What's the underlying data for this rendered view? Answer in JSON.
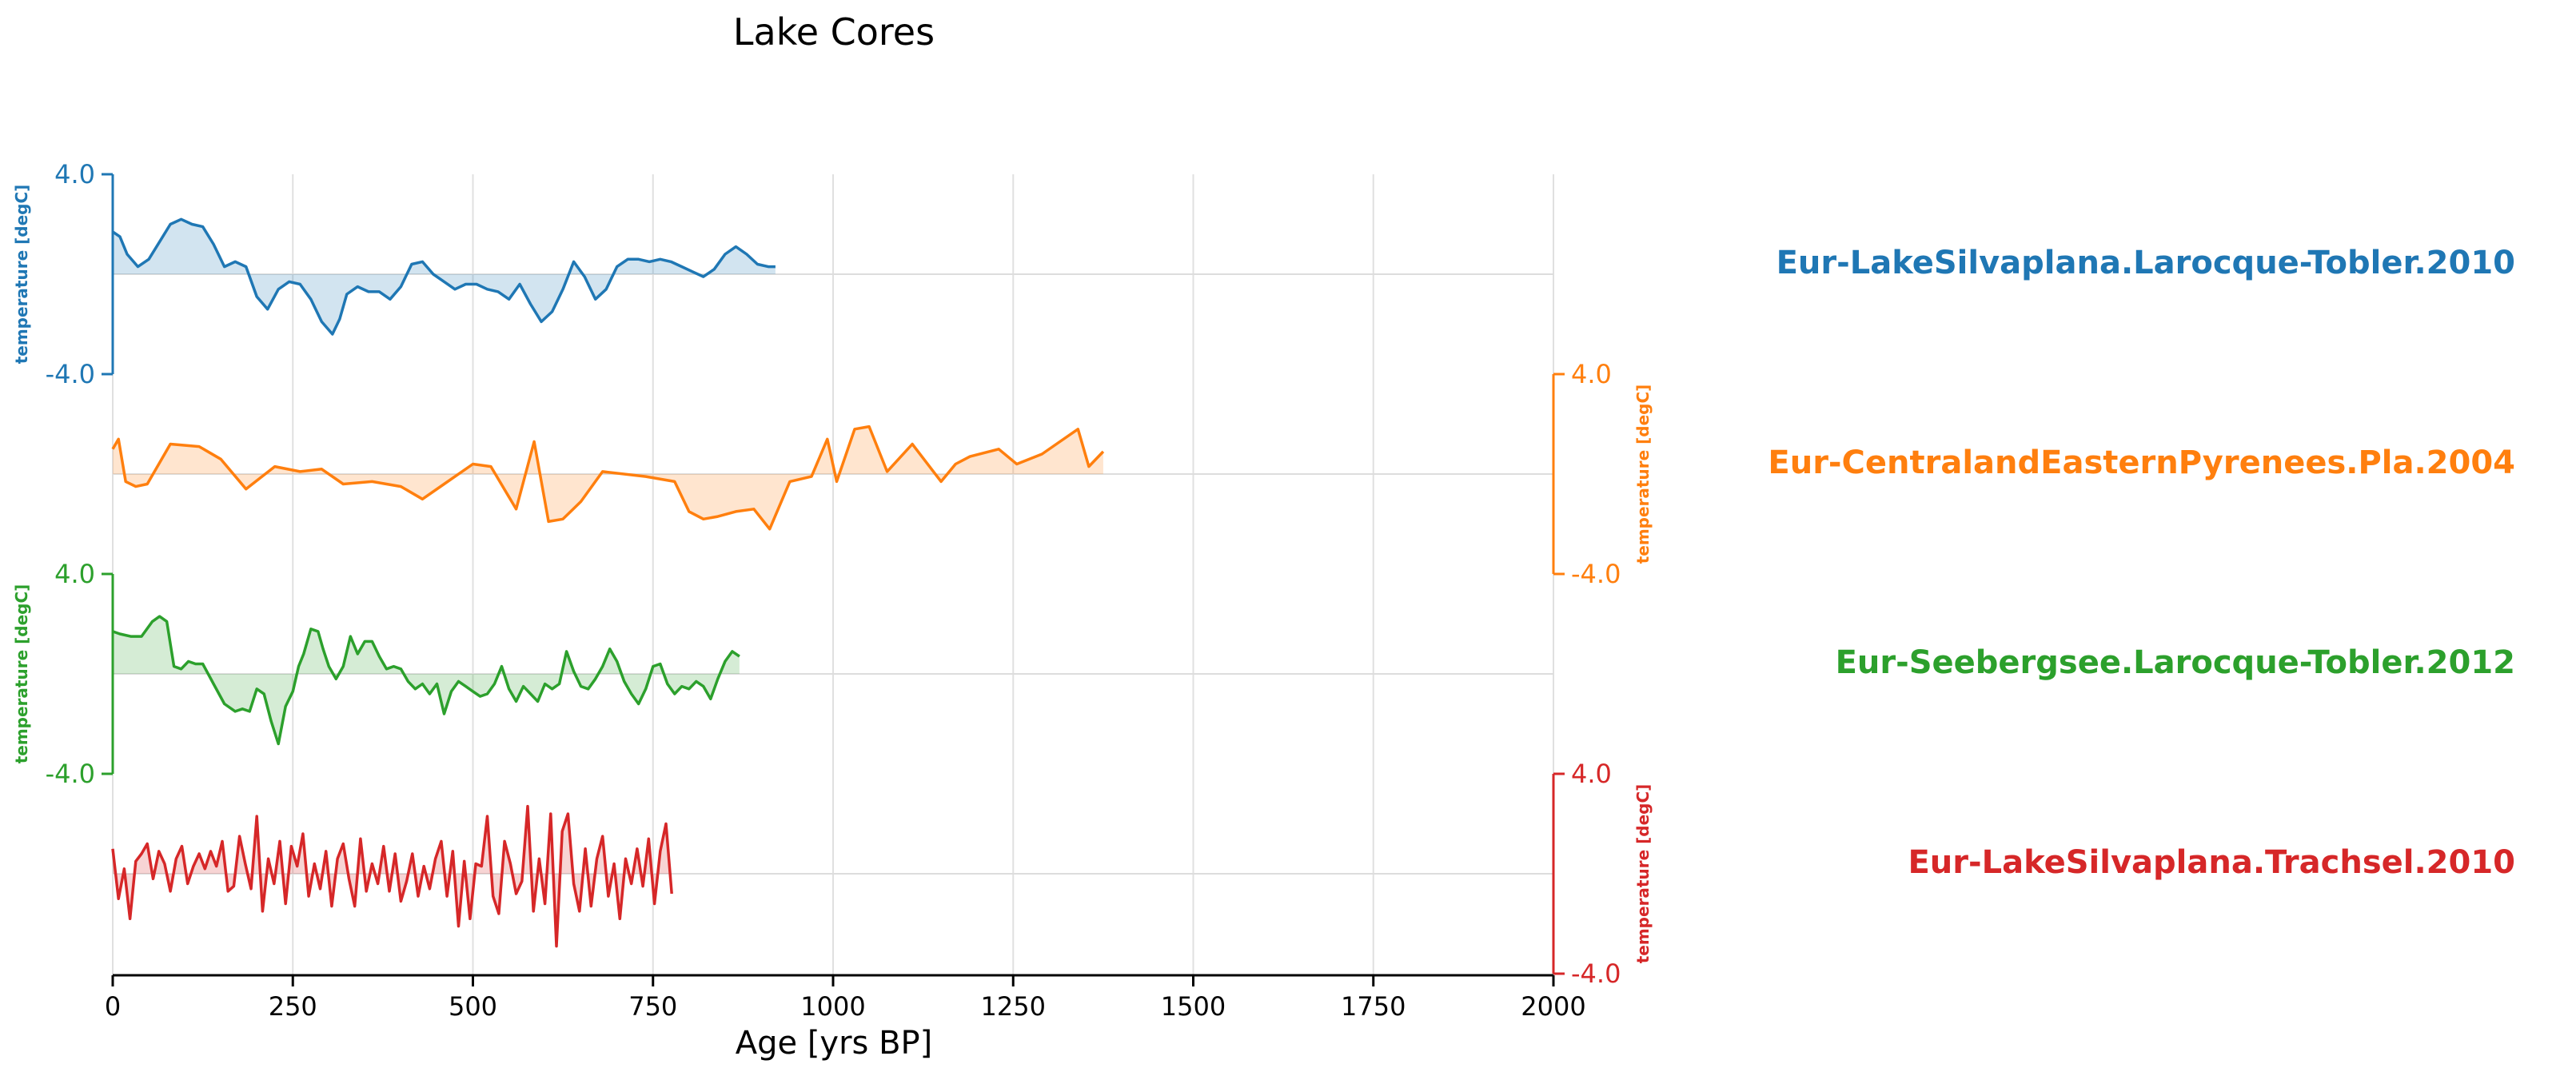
{
  "chart_data": {
    "type": "line",
    "title": "Lake Cores",
    "xlabel": "Age [yrs BP]",
    "xlim": [
      0,
      2000
    ],
    "xticks": [
      0,
      250,
      500,
      750,
      1000,
      1250,
      1500,
      1750,
      2000
    ],
    "grid": true,
    "stacked": true,
    "fill_to_zero": true,
    "series": [
      {
        "name": "Eur-LakeSilvaplana.Larocque-Tobler.2010",
        "color": "#1f77b4",
        "ylabel": "temperature [degC]",
        "ylim": [
          -4.0,
          4.0
        ],
        "ytick_labels": [
          "-4.0",
          "4.0"
        ],
        "axis_side": "left",
        "x": [
          0,
          10,
          20,
          35,
          50,
          65,
          80,
          95,
          110,
          125,
          140,
          155,
          170,
          185,
          200,
          215,
          230,
          245,
          260,
          275,
          290,
          305,
          315,
          325,
          340,
          355,
          370,
          385,
          400,
          415,
          430,
          445,
          460,
          475,
          490,
          505,
          520,
          535,
          550,
          565,
          580,
          595,
          610,
          625,
          640,
          655,
          670,
          685,
          700,
          715,
          730,
          745,
          760,
          775,
          790,
          805,
          820,
          835,
          850,
          865,
          880,
          895,
          910,
          920
        ],
        "y": [
          1.7,
          1.5,
          0.8,
          0.3,
          0.6,
          1.3,
          2.0,
          2.2,
          2.0,
          1.9,
          1.2,
          0.3,
          0.5,
          0.3,
          -0.9,
          -1.4,
          -0.6,
          -0.3,
          -0.4,
          -1.0,
          -1.9,
          -2.4,
          -1.8,
          -0.8,
          -0.5,
          -0.7,
          -0.7,
          -1.0,
          -0.5,
          0.4,
          0.5,
          0.0,
          -0.3,
          -0.6,
          -0.4,
          -0.4,
          -0.6,
          -0.7,
          -1.0,
          -0.4,
          -1.2,
          -1.9,
          -1.5,
          -0.6,
          0.5,
          -0.1,
          -1.0,
          -0.6,
          0.3,
          0.6,
          0.6,
          0.5,
          0.6,
          0.5,
          0.3,
          0.1,
          -0.1,
          0.2,
          0.8,
          1.1,
          0.8,
          0.4,
          0.3,
          0.3
        ]
      },
      {
        "name": "Eur-CentralandEasternPyrenees.Pla.2004",
        "color": "#ff7f0e",
        "ylabel": "temperature [degC]",
        "ylim": [
          -4.0,
          4.0
        ],
        "ytick_labels": [
          "-4.0",
          "4.0"
        ],
        "axis_side": "right",
        "x": [
          0,
          8,
          18,
          32,
          48,
          80,
          120,
          150,
          185,
          225,
          260,
          290,
          320,
          360,
          400,
          430,
          460,
          500,
          525,
          560,
          585,
          605,
          625,
          650,
          680,
          740,
          780,
          800,
          820,
          840,
          865,
          890,
          912,
          940,
          970,
          992,
          1005,
          1030,
          1050,
          1075,
          1110,
          1150,
          1170,
          1190,
          1230,
          1255,
          1290,
          1310,
          1340,
          1355,
          1375
        ],
        "y": [
          1.0,
          1.4,
          -0.3,
          -0.5,
          -0.4,
          1.2,
          1.1,
          0.6,
          -0.6,
          0.3,
          0.1,
          0.2,
          -0.4,
          -0.3,
          -0.5,
          -1.0,
          -0.4,
          0.4,
          0.3,
          -1.4,
          1.3,
          -1.9,
          -1.8,
          -1.1,
          0.1,
          -0.1,
          -0.3,
          -1.5,
          -1.8,
          -1.7,
          -1.5,
          -1.4,
          -2.2,
          -0.3,
          -0.1,
          1.4,
          -0.3,
          1.8,
          1.9,
          0.1,
          1.2,
          -0.3,
          0.4,
          0.7,
          1.0,
          0.4,
          0.8,
          1.2,
          1.8,
          0.3,
          0.9
        ]
      },
      {
        "name": "Eur-Seebergsee.Larocque-Tobler.2012",
        "color": "#2ca02c",
        "ylabel": "temperature [degC]",
        "ylim": [
          -4.0,
          4.0
        ],
        "ytick_labels": [
          "-4.0",
          "4.0"
        ],
        "axis_side": "left",
        "x": [
          0,
          10,
          25,
          40,
          55,
          65,
          75,
          85,
          95,
          105,
          115,
          125,
          140,
          155,
          170,
          180,
          190,
          200,
          210,
          220,
          230,
          240,
          250,
          258,
          265,
          275,
          285,
          292,
          300,
          310,
          320,
          330,
          340,
          350,
          360,
          370,
          380,
          390,
          400,
          410,
          420,
          430,
          440,
          450,
          460,
          470,
          480,
          490,
          500,
          510,
          520,
          530,
          540,
          550,
          560,
          570,
          580,
          590,
          600,
          610,
          620,
          630,
          640,
          650,
          660,
          670,
          680,
          690,
          700,
          710,
          720,
          730,
          740,
          750,
          760,
          770,
          780,
          790,
          800,
          810,
          820,
          830,
          840,
          850,
          860,
          870
        ],
        "y": [
          1.7,
          1.6,
          1.5,
          1.5,
          2.1,
          2.3,
          2.1,
          0.3,
          0.2,
          0.5,
          0.4,
          0.4,
          -0.4,
          -1.2,
          -1.5,
          -1.4,
          -1.5,
          -0.6,
          -0.8,
          -1.9,
          -2.8,
          -1.3,
          -0.7,
          0.3,
          0.8,
          1.8,
          1.7,
          1.0,
          0.3,
          -0.2,
          0.3,
          1.5,
          0.8,
          1.3,
          1.3,
          0.7,
          0.2,
          0.3,
          0.2,
          -0.3,
          -0.6,
          -0.4,
          -0.8,
          -0.4,
          -1.6,
          -0.7,
          -0.3,
          -0.5,
          -0.7,
          -0.9,
          -0.8,
          -0.4,
          0.3,
          -0.6,
          -1.1,
          -0.5,
          -0.8,
          -1.1,
          -0.4,
          -0.6,
          -0.4,
          0.9,
          0.1,
          -0.5,
          -0.6,
          -0.2,
          0.3,
          1.0,
          0.5,
          -0.3,
          -0.8,
          -1.2,
          -0.6,
          0.3,
          0.4,
          -0.4,
          -0.8,
          -0.5,
          -0.6,
          -0.3,
          -0.5,
          -1.0,
          -0.2,
          0.5,
          0.9,
          0.7
        ]
      },
      {
        "name": "Eur-LakeSilvaplana.Trachsel.2010",
        "color": "#d62728",
        "ylabel": "temperature [degC]",
        "ylim": [
          -4.0,
          4.0
        ],
        "ytick_labels": [
          "-4.0",
          "4.0"
        ],
        "axis_side": "right",
        "x": [
          0,
          8,
          16,
          24,
          32,
          40,
          48,
          56,
          64,
          72,
          80,
          88,
          96,
          104,
          112,
          120,
          128,
          136,
          144,
          152,
          160,
          168,
          176,
          184,
          192,
          200,
          208,
          216,
          224,
          232,
          240,
          248,
          256,
          264,
          272,
          280,
          288,
          296,
          304,
          312,
          320,
          328,
          336,
          344,
          352,
          360,
          368,
          376,
          384,
          392,
          400,
          408,
          416,
          424,
          432,
          440,
          448,
          456,
          464,
          472,
          480,
          488,
          496,
          504,
          512,
          520,
          528,
          536,
          544,
          552,
          560,
          568,
          576,
          584,
          592,
          600,
          608,
          616,
          624,
          632,
          640,
          648,
          656,
          664,
          672,
          680,
          688,
          696,
          704,
          712,
          720,
          728,
          736,
          744,
          752,
          760,
          768,
          776
        ],
        "y": [
          1.0,
          -1.0,
          0.2,
          -1.8,
          0.5,
          0.8,
          1.2,
          -0.2,
          0.9,
          0.4,
          -0.7,
          0.6,
          1.1,
          -0.4,
          0.3,
          0.8,
          0.2,
          0.9,
          0.3,
          1.3,
          -0.7,
          -0.5,
          1.5,
          0.4,
          -0.6,
          2.3,
          -1.5,
          0.6,
          -0.4,
          1.3,
          -1.2,
          1.1,
          0.3,
          1.6,
          -0.9,
          0.4,
          -0.6,
          0.9,
          -1.3,
          0.6,
          1.2,
          -0.2,
          -1.3,
          1.4,
          -0.7,
          0.4,
          -0.4,
          1.1,
          -0.7,
          0.8,
          -1.1,
          -0.3,
          0.8,
          -0.9,
          0.3,
          -0.6,
          0.6,
          1.3,
          -0.9,
          0.9,
          -2.1,
          0.5,
          -1.8,
          0.4,
          0.3,
          2.3,
          -0.9,
          -1.6,
          1.3,
          0.4,
          -0.8,
          -0.3,
          2.7,
          -1.5,
          0.6,
          -1.2,
          2.4,
          -2.9,
          1.7,
          2.4,
          -0.4,
          -1.5,
          1.0,
          -1.3,
          0.6,
          1.5,
          -0.9,
          0.4,
          -1.8,
          0.6,
          -0.4,
          1.0,
          -0.5,
          1.4,
          -1.2,
          0.9,
          2.0,
          -0.8
        ]
      }
    ]
  }
}
